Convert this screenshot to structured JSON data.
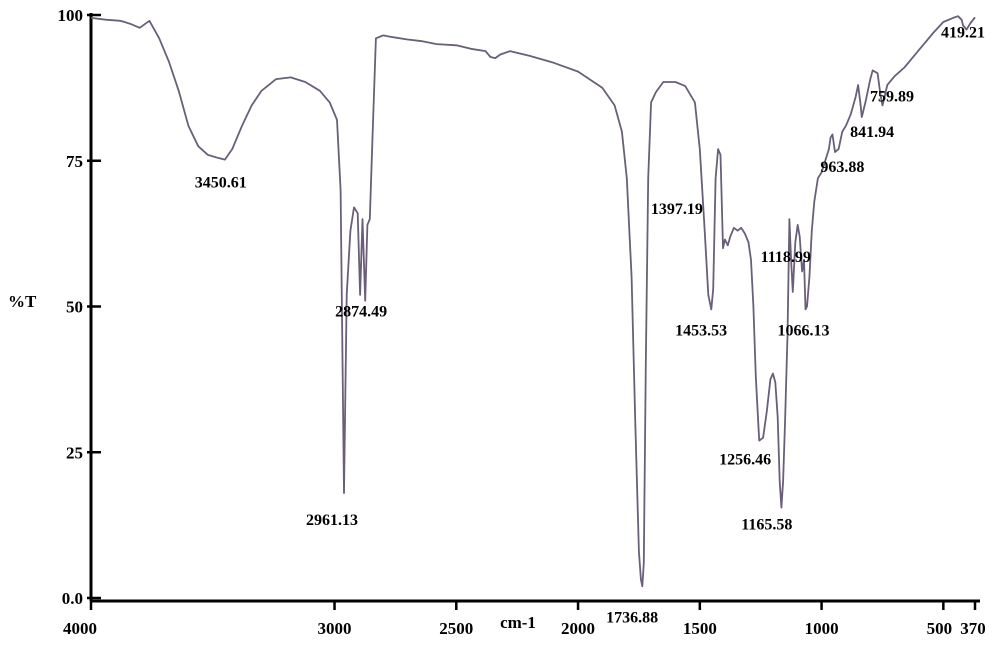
{
  "chart_data": {
    "type": "line",
    "xlabel": "cm-1",
    "ylabel": "%T",
    "xlim": [
      4000,
      370
    ],
    "ylim": [
      0,
      100
    ],
    "x_ticks": [
      {
        "value": 4000,
        "label": "4000"
      },
      {
        "value": 3000,
        "label": "3000"
      },
      {
        "value": 2500,
        "label": "2500"
      },
      {
        "value": 2000,
        "label": "2000"
      },
      {
        "value": 1500,
        "label": "1500"
      },
      {
        "value": 1000,
        "label": "1000"
      },
      {
        "value": 500,
        "label": "500"
      },
      {
        "value": 370,
        "label": "370"
      }
    ],
    "y_ticks": [
      {
        "value": 100,
        "label": "100"
      },
      {
        "value": 75,
        "label": "75"
      },
      {
        "value": 50,
        "label": "50"
      },
      {
        "value": 25,
        "label": "25"
      },
      {
        "value": 0,
        "label": "0.0"
      }
    ],
    "grid": false,
    "line_color": "#6a5f78",
    "series": [
      {
        "x": [
          4000,
          3940,
          3880,
          3840,
          3800,
          3760,
          3720,
          3680,
          3640,
          3600,
          3560,
          3520,
          3480,
          3450,
          3420,
          3380,
          3340,
          3300,
          3240,
          3180,
          3120,
          3060,
          3020,
          2990,
          2975,
          2961,
          2950,
          2935,
          2920,
          2905,
          2895,
          2885,
          2874,
          2865,
          2855,
          2845,
          2830,
          2800,
          2760,
          2700,
          2640,
          2580,
          2500,
          2440,
          2380,
          2360,
          2340,
          2320,
          2280,
          2200,
          2100,
          2000,
          1900,
          1850,
          1820,
          1800,
          1780,
          1765,
          1750,
          1742,
          1736,
          1730,
          1722,
          1712,
          1700,
          1680,
          1650,
          1600,
          1560,
          1520,
          1500,
          1480,
          1465,
          1453,
          1445,
          1435,
          1425,
          1415,
          1405,
          1397,
          1385,
          1375,
          1360,
          1345,
          1330,
          1315,
          1300,
          1290,
          1280,
          1270,
          1256,
          1240,
          1225,
          1210,
          1200,
          1190,
          1180,
          1172,
          1165,
          1158,
          1150,
          1140,
          1132,
          1125,
          1118,
          1108,
          1098,
          1090,
          1080,
          1072,
          1066,
          1060,
          1050,
          1040,
          1030,
          1015,
          1000,
          985,
          970,
          963,
          955,
          945,
          930,
          915,
          900,
          880,
          860,
          850,
          841,
          835,
          820,
          800,
          790,
          770,
          759,
          750,
          730,
          700,
          660,
          620,
          580,
          540,
          500,
          460,
          440,
          425,
          419,
          405,
          390,
          370
        ],
        "y": [
          99.5,
          99.2,
          99.0,
          98.5,
          97.8,
          99.0,
          96,
          92,
          87,
          81,
          77.5,
          76,
          75.5,
          75.2,
          77,
          81,
          84.5,
          87,
          89,
          89.3,
          88.5,
          87,
          85,
          82,
          70,
          18,
          52,
          63,
          67,
          66,
          52,
          65,
          51,
          64,
          65,
          78,
          96,
          96.5,
          96.2,
          95.8,
          95.5,
          95.0,
          94.8,
          94.2,
          93.8,
          92.8,
          92.6,
          93.2,
          93.8,
          93.0,
          91.8,
          90.3,
          87.5,
          84.5,
          80,
          72,
          55,
          30,
          8,
          3.2,
          2.0,
          6,
          40,
          72,
          85,
          86.8,
          88.5,
          88.5,
          87.8,
          85,
          77,
          63,
          52,
          49.5,
          53,
          72,
          77,
          76,
          60,
          61.5,
          60.5,
          62,
          63.5,
          63.0,
          63.5,
          62.5,
          61,
          58,
          50,
          38,
          27.0,
          27.5,
          32,
          37.5,
          38.5,
          37,
          31,
          20,
          15.5,
          20,
          30,
          45,
          65,
          58,
          52.5,
          61,
          64,
          62,
          56,
          58,
          49.5,
          50,
          55,
          63,
          68,
          72,
          73,
          75,
          77,
          79,
          79.5,
          76.5,
          77,
          80,
          81,
          83,
          86,
          88,
          85,
          82.5,
          85,
          89,
          90.5,
          90,
          86.5,
          84.5,
          88,
          89.5,
          91,
          93,
          95,
          97,
          98.8,
          99.5,
          99.8,
          99.2,
          98.2,
          97.5,
          98.5,
          99.6
        ]
      }
    ],
    "annotations": [
      {
        "x": 3450.61,
        "y": 75.2,
        "text": "3450.61"
      },
      {
        "x": 2874.49,
        "y": 51,
        "text": "2874.49"
      },
      {
        "x": 2961.13,
        "y": 18,
        "text": "2961.13"
      },
      {
        "x": 1736.88,
        "y": 2.0,
        "text": "1736.88"
      },
      {
        "x": 1397.19,
        "y": 60,
        "text": "1397.19"
      },
      {
        "x": 1453.53,
        "y": 49.5,
        "text": "1453.53"
      },
      {
        "x": 1256.46,
        "y": 27.0,
        "text": "1256.46"
      },
      {
        "x": 1165.58,
        "y": 15.5,
        "text": "1165.58"
      },
      {
        "x": 1118.99,
        "y": 52.5,
        "text": "1118.99"
      },
      {
        "x": 1066.13,
        "y": 49.5,
        "text": "1066.13"
      },
      {
        "x": 963.88,
        "y": 76.5,
        "text": "963.88"
      },
      {
        "x": 841.94,
        "y": 82.5,
        "text": "841.94"
      },
      {
        "x": 759.89,
        "y": 84.5,
        "text": "759.89"
      },
      {
        "x": 419.21,
        "y": 97.5,
        "text": "419.21"
      }
    ]
  }
}
